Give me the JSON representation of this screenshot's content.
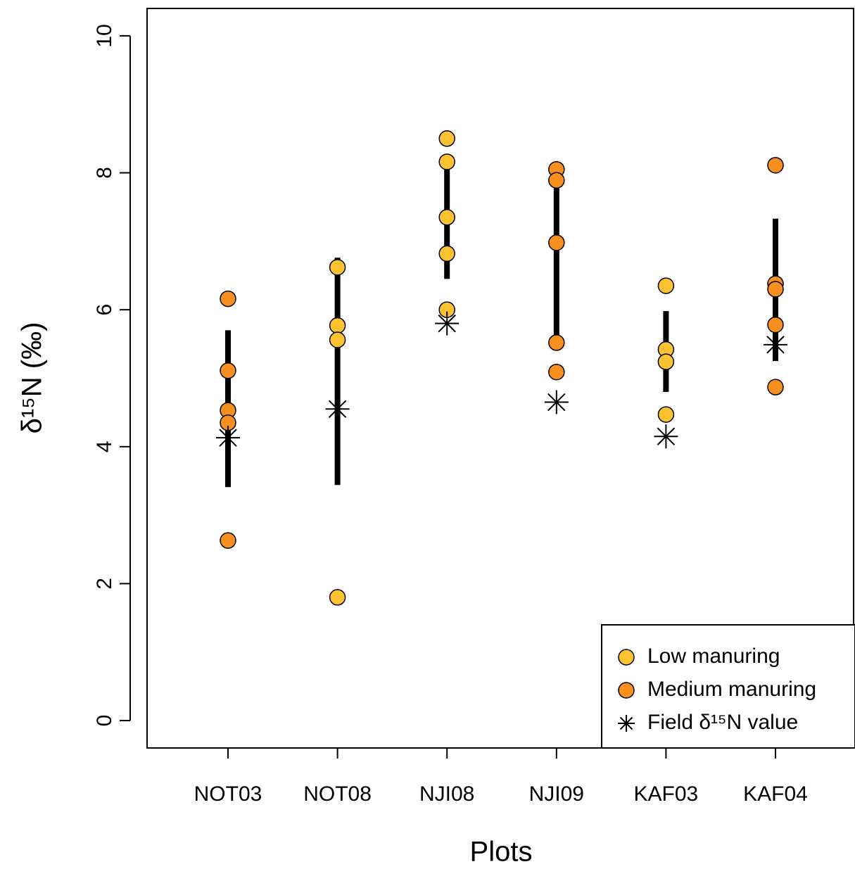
{
  "chart_data": {
    "type": "scatter",
    "x_label": "Plots",
    "y_label": "δ¹⁵N (‰)",
    "categories": [
      "NOT03",
      "NOT08",
      "NJI08",
      "NJI09",
      "KAF03",
      "KAF04"
    ],
    "ylim": [
      -0.4,
      10.4
    ],
    "yticks": [
      0,
      2,
      4,
      6,
      8,
      10
    ],
    "legend_position": "lower right",
    "series": [
      {
        "name": "Low manuring",
        "color": "#fcc232",
        "values": [
          [],
          [
            6.62,
            5.77,
            5.56,
            1.8
          ],
          [
            8.5,
            8.16,
            7.35,
            6.82,
            6.0
          ],
          [],
          [
            6.35,
            5.42,
            5.24,
            4.47
          ],
          []
        ]
      },
      {
        "name": "Medium manuring",
        "color": "#f7901e",
        "values": [
          [
            6.16,
            5.11,
            4.53,
            4.35,
            2.63
          ],
          [],
          [],
          [
            8.05,
            7.89,
            6.98,
            5.52,
            5.09
          ],
          [],
          [
            8.11,
            6.38,
            6.3,
            5.78,
            4.87
          ]
        ]
      },
      {
        "name": "Field δ¹⁵N value",
        "color": "#000000",
        "marker": "asterisk",
        "values": [
          4.13,
          4.55,
          5.8,
          4.65,
          4.15,
          5.49
        ]
      }
    ],
    "ranges": {
      "color": "#000000",
      "low": [
        3.41,
        3.44,
        6.45,
        5.5,
        4.8,
        5.25
      ],
      "high": [
        5.7,
        6.76,
        8.1,
        7.9,
        5.98,
        7.33
      ]
    }
  }
}
